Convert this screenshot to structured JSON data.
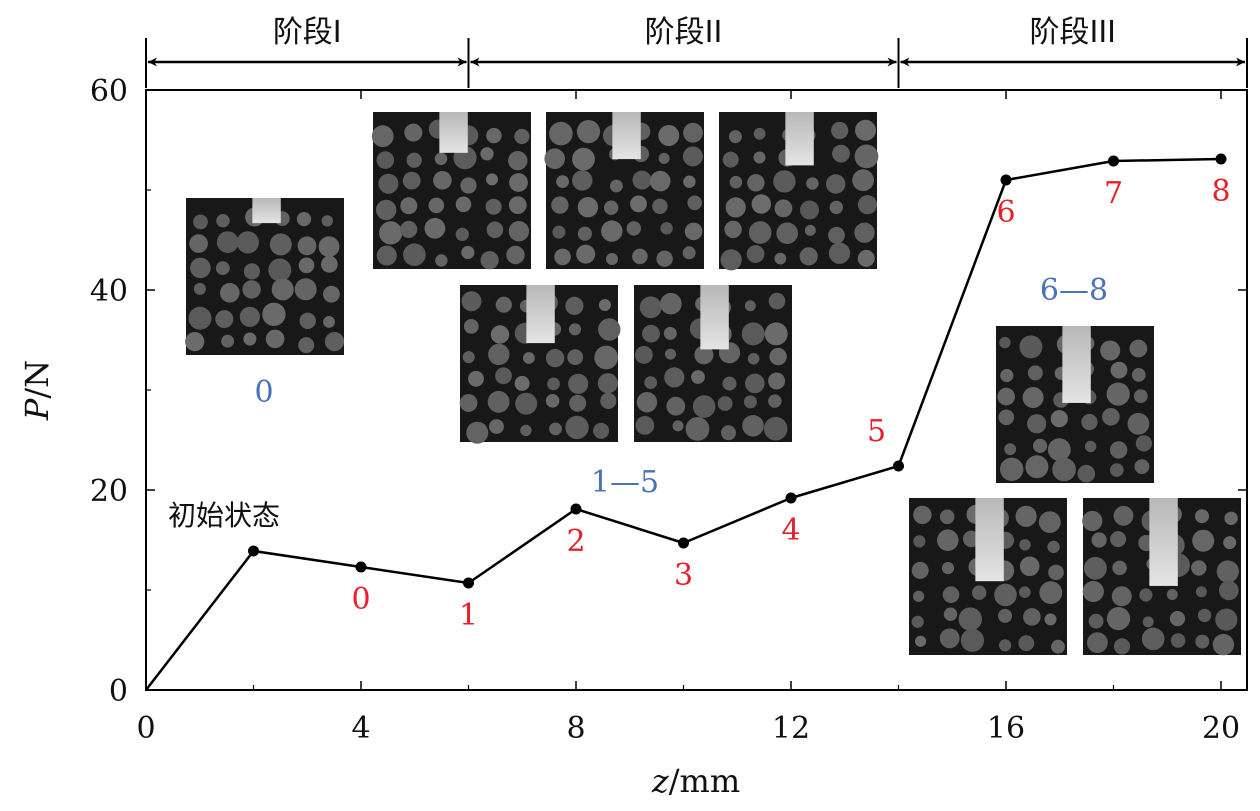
{
  "chart_data": {
    "type": "line",
    "xlabel_var": "z",
    "xlabel_unit": "/mm",
    "ylabel_var": "P",
    "ylabel_unit": "/N",
    "xlim": [
      0,
      20.5
    ],
    "ylim": [
      0,
      60
    ],
    "xticks": [
      0,
      4,
      8,
      12,
      16,
      20
    ],
    "yticks": [
      0,
      20,
      40,
      60
    ],
    "grid": false,
    "series": [
      {
        "points": [
          {
            "x": 0,
            "y": 0
          },
          {
            "x": 2,
            "y": 13.9
          },
          {
            "x": 4,
            "y": 12.3
          },
          {
            "x": 6,
            "y": 10.7
          },
          {
            "x": 8,
            "y": 18.1
          },
          {
            "x": 10,
            "y": 14.7
          },
          {
            "x": 12,
            "y": 19.2
          },
          {
            "x": 14,
            "y": 22.4
          },
          {
            "x": 16,
            "y": 51.0
          },
          {
            "x": 18,
            "y": 52.9
          },
          {
            "x": 20,
            "y": 53.1
          }
        ]
      }
    ],
    "point_labels": [
      {
        "text": "0",
        "x": 4,
        "y": 12.3,
        "pos": "below"
      },
      {
        "text": "1",
        "x": 6,
        "y": 10.7,
        "pos": "below"
      },
      {
        "text": "2",
        "x": 8,
        "y": 18.1,
        "pos": "below"
      },
      {
        "text": "3",
        "x": 10,
        "y": 14.7,
        "pos": "below"
      },
      {
        "text": "4",
        "x": 12,
        "y": 19.2,
        "pos": "below"
      },
      {
        "text": "5",
        "x": 14,
        "y": 22.4,
        "pos": "above-left"
      },
      {
        "text": "6",
        "x": 16,
        "y": 51.0,
        "pos": "below"
      },
      {
        "text": "7",
        "x": 18,
        "y": 52.9,
        "pos": "below"
      },
      {
        "text": "8",
        "x": 20,
        "y": 53.1,
        "pos": "below"
      }
    ],
    "stages": [
      {
        "label": "阶段I",
        "from": 0,
        "to": 6
      },
      {
        "label": "阶段II",
        "from": 6,
        "to": 14
      },
      {
        "label": "阶段III",
        "from": 14,
        "to": 20.5
      }
    ],
    "annotation": "初始状态",
    "image_group_labels": [
      "0",
      "1—5",
      "6—8"
    ]
  }
}
